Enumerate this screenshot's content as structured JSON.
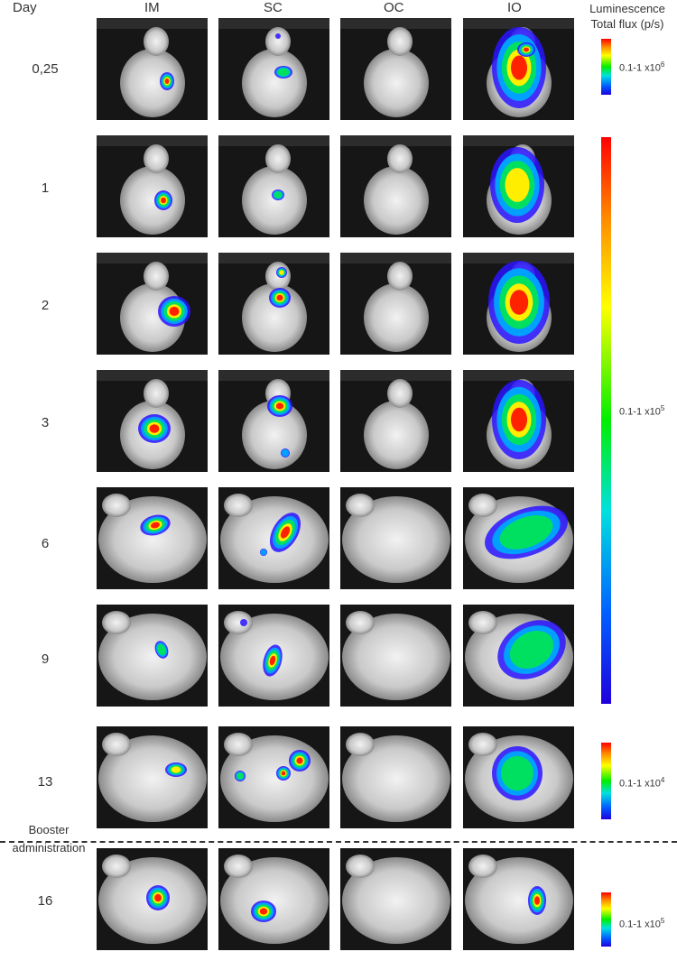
{
  "header": {
    "day": "Day",
    "columns": [
      "IM",
      "SC",
      "OC",
      "IO"
    ]
  },
  "legend": {
    "title_line1": "Luminescence",
    "title_line2": "Total flux (p/s)"
  },
  "rows": [
    {
      "day": "0,25"
    },
    {
      "day": "1"
    },
    {
      "day": "2"
    },
    {
      "day": "3"
    },
    {
      "day": "6"
    },
    {
      "day": "9"
    },
    {
      "day": "13"
    },
    {
      "day": "16"
    }
  ],
  "booster": {
    "line1": "Booster",
    "line2": "administration"
  },
  "scale_bars": [
    {
      "label": "0.1-1 x10",
      "exp": "6"
    },
    {
      "label": "0.1-1 x10",
      "exp": "5"
    },
    {
      "label": "0.1-1 x10",
      "exp": "4"
    },
    {
      "label": "0.1-1 x10",
      "exp": "5"
    }
  ]
}
